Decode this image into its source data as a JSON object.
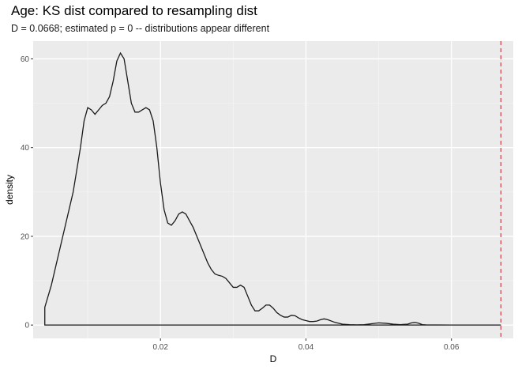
{
  "chart_data": {
    "type": "line",
    "title": "Age: KS dist compared to resampling dist",
    "subtitle": "D = 0.0668; estimated p = 0 -- distributions appear different",
    "xlabel": "D",
    "ylabel": "density",
    "xlim": [
      0.0025,
      0.0685
    ],
    "ylim": [
      -3,
      64
    ],
    "x_ticks": [
      0.02,
      0.04,
      0.06
    ],
    "x_tick_labels": [
      "0.02",
      "0.04",
      "0.06"
    ],
    "y_ticks": [
      0,
      20,
      40,
      60
    ],
    "y_tick_labels": [
      "0",
      "20",
      "40",
      "60"
    ],
    "grid": true,
    "background": "#ebebeb",
    "line_color": "#1a1a1a",
    "reference_line": {
      "x": 0.0668,
      "style": "dashed",
      "color": "#c8404a"
    },
    "series": [
      {
        "x": [
          0.0041,
          0.005,
          0.006,
          0.007,
          0.008,
          0.009,
          0.0095,
          0.01,
          0.0105,
          0.011,
          0.0115,
          0.012,
          0.0125,
          0.013,
          0.0135,
          0.014,
          0.0145,
          0.015,
          0.0155,
          0.016,
          0.0165,
          0.017,
          0.0175,
          0.018,
          0.0185,
          0.019,
          0.0195,
          0.02,
          0.0205,
          0.021,
          0.0215,
          0.022,
          0.0225,
          0.023,
          0.0235,
          0.024,
          0.0245,
          0.025,
          0.0255,
          0.026,
          0.0265,
          0.027,
          0.0275,
          0.028,
          0.0285,
          0.029,
          0.0295,
          0.03,
          0.0305,
          0.031,
          0.0315,
          0.032,
          0.0325,
          0.033,
          0.0335,
          0.034,
          0.0345,
          0.035,
          0.0355,
          0.036,
          0.0365,
          0.037,
          0.0375,
          0.038,
          0.0385,
          0.039,
          0.0395,
          0.04,
          0.0405,
          0.041,
          0.0415,
          0.042,
          0.0425,
          0.043,
          0.044,
          0.045,
          0.046,
          0.047,
          0.048,
          0.049,
          0.05,
          0.051,
          0.052,
          0.053,
          0.054,
          0.0545,
          0.055,
          0.0555,
          0.056,
          0.0565,
          0.057,
          0.058,
          0.06,
          0.062,
          0.064,
          0.066,
          0.0668
        ],
        "y": [
          4,
          9,
          16,
          23,
          30,
          40,
          46,
          49,
          48.5,
          47.5,
          48.5,
          49.5,
          50,
          51.5,
          55,
          59.5,
          61.3,
          60,
          55,
          50,
          48,
          48,
          48.5,
          49,
          48.5,
          46,
          40,
          32,
          26,
          23,
          22.5,
          23.5,
          25,
          25.5,
          25,
          23.5,
          22,
          20,
          18,
          16,
          14,
          12.5,
          11.5,
          11.2,
          11,
          10.5,
          9.5,
          8.5,
          8.5,
          9,
          8.5,
          6.5,
          4.5,
          3.2,
          3.2,
          3.8,
          4.5,
          4.5,
          3.8,
          2.8,
          2.2,
          1.8,
          1.8,
          2.2,
          2.1,
          1.6,
          1.2,
          1.0,
          0.8,
          0.8,
          0.9,
          1.2,
          1.4,
          1.2,
          0.6,
          0.2,
          0.1,
          0.05,
          0.1,
          0.3,
          0.5,
          0.4,
          0.2,
          0.1,
          0.2,
          0.5,
          0.6,
          0.4,
          0.1,
          0.05,
          0.03,
          0.02,
          0.01,
          0.01,
          0,
          0,
          0
        ]
      }
    ]
  }
}
